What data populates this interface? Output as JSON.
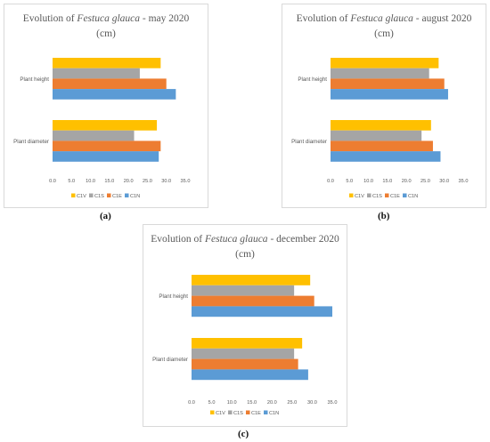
{
  "chart_data": [
    {
      "type": "bar",
      "orientation": "horizontal",
      "panel_label": "(a)",
      "title": {
        "prefix": "Evolution of ",
        "species": "Festuca glauca",
        "suffix": " - may 2020",
        "unit": "(cm)"
      },
      "categories": [
        "Plant height",
        "Plant diameter"
      ],
      "xlim": [
        0,
        35
      ],
      "xticks": [
        "0.0",
        "5.0",
        "10.0",
        "15.0",
        "20.0",
        "25.0",
        "30.0",
        "35.0"
      ],
      "grid": false,
      "legend_position": "bottom",
      "series": [
        {
          "name": "C1V",
          "color": "#FFC000",
          "values": [
            28.5,
            27.5
          ]
        },
        {
          "name": "C1S",
          "color": "#A5A5A5",
          "values": [
            23.0,
            21.5
          ]
        },
        {
          "name": "C1E",
          "color": "#ED7D31",
          "values": [
            30.0,
            28.5
          ]
        },
        {
          "name": "C1N",
          "color": "#5B9BD5",
          "values": [
            32.5,
            28.0
          ]
        }
      ]
    },
    {
      "type": "bar",
      "orientation": "horizontal",
      "panel_label": "(b)",
      "title": {
        "prefix": "Evolution of ",
        "species": "Festuca glauca",
        "suffix": " - august 2020",
        "unit": "(cm)"
      },
      "categories": [
        "Plant height",
        "Plant diameter"
      ],
      "xlim": [
        0,
        35
      ],
      "xticks": [
        "0.0",
        "5.0",
        "10.0",
        "15.0",
        "20.0",
        "25.0",
        "30.0",
        "35.0"
      ],
      "grid": false,
      "legend_position": "bottom",
      "series": [
        {
          "name": "C1V",
          "color": "#FFC000",
          "values": [
            28.5,
            26.5
          ]
        },
        {
          "name": "C1S",
          "color": "#A5A5A5",
          "values": [
            26.0,
            24.0
          ]
        },
        {
          "name": "C1E",
          "color": "#ED7D31",
          "values": [
            30.0,
            27.0
          ]
        },
        {
          "name": "C1N",
          "color": "#5B9BD5",
          "values": [
            31.0,
            29.0
          ]
        }
      ]
    },
    {
      "type": "bar",
      "orientation": "horizontal",
      "panel_label": "(c)",
      "title": {
        "prefix": "Evolution of ",
        "species": "Festuca glauca",
        "suffix": " - december  2020",
        "unit": "(cm)"
      },
      "categories": [
        "Plant height",
        "Plant diameter"
      ],
      "xlim": [
        0,
        35
      ],
      "xticks": [
        "0.0",
        "5.0",
        "10.0",
        "15.0",
        "20.0",
        "25.0",
        "30.0",
        "35.0"
      ],
      "grid": false,
      "legend_position": "bottom",
      "series": [
        {
          "name": "C1V",
          "color": "#FFC000",
          "values": [
            29.5,
            27.5
          ]
        },
        {
          "name": "C1S",
          "color": "#A5A5A5",
          "values": [
            25.5,
            25.5
          ]
        },
        {
          "name": "C1E",
          "color": "#ED7D31",
          "values": [
            30.5,
            26.5
          ]
        },
        {
          "name": "C1N",
          "color": "#5B9BD5",
          "values": [
            35.0,
            29.0
          ]
        }
      ]
    }
  ]
}
